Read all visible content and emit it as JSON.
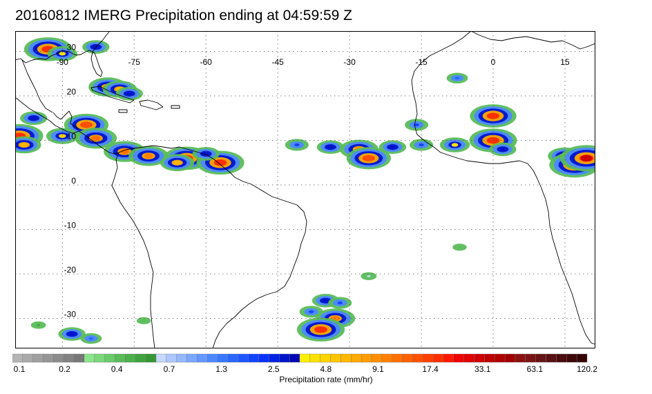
{
  "title": "20160812 IMERG Precipitation ending at 04:59:59 Z",
  "map": {
    "lon_ticks": [
      {
        "lon": -90,
        "label": "-90"
      },
      {
        "lon": -75,
        "label": "-75"
      },
      {
        "lon": -60,
        "label": "-60"
      },
      {
        "lon": -45,
        "label": "-45"
      },
      {
        "lon": -30,
        "label": "-30"
      },
      {
        "lon": -15,
        "label": "-15"
      },
      {
        "lon": 0,
        "label": "0"
      },
      {
        "lon": 15,
        "label": "15"
      }
    ],
    "lat_ticks": [
      {
        "lat": 30,
        "label": "30"
      },
      {
        "lat": 20,
        "label": "20"
      },
      {
        "lat": 10,
        "label": "10"
      },
      {
        "lat": 0,
        "label": "0"
      },
      {
        "lat": -10,
        "label": "-10"
      },
      {
        "lat": -20,
        "label": "-20"
      },
      {
        "lat": -30,
        "label": "-30"
      }
    ],
    "grid": "dotted",
    "colors": {
      "coast": "#000000",
      "grid": "#555555",
      "border": "#000000"
    }
  },
  "colorbar": {
    "label": "Precipitation rate (mm/hr)",
    "tick_labels": [
      {
        "index": 0,
        "label": "0.1"
      },
      {
        "index": 7,
        "label": "0.2"
      },
      {
        "index": 14,
        "label": "0.4"
      },
      {
        "index": 21,
        "label": "0.7"
      },
      {
        "index": 28,
        "label": "1.3"
      },
      {
        "index": 35,
        "label": "2.5"
      },
      {
        "index": 42,
        "label": "4.8"
      },
      {
        "index": 49,
        "label": "9.1"
      },
      {
        "index": 56,
        "label": "17.4"
      },
      {
        "index": 63,
        "label": "33.1"
      },
      {
        "index": 70,
        "label": "63.1"
      },
      {
        "index": 77,
        "label": "120.2"
      }
    ],
    "colors": [
      "#b4b4b4",
      "#aaaaaa",
      "#a0a0a0",
      "#969696",
      "#8c8c8c",
      "#828282",
      "#787878",
      "#8ae68a",
      "#7ad87a",
      "#6acb6a",
      "#5abd5a",
      "#4cb04c",
      "#3fa33f",
      "#349734",
      "#c6d8ff",
      "#acc8ff",
      "#93b8ff",
      "#7ba8ff",
      "#6498ff",
      "#4d88ff",
      "#3878ff",
      "#2a66ff",
      "#1d55ff",
      "#1244ff",
      "#0833ff",
      "#0022e6",
      "#0014cc",
      "#0008b3",
      "#fff000",
      "#ffe200",
      "#ffd400",
      "#ffc600",
      "#ffb800",
      "#ffaa00",
      "#ff9c00",
      "#ff8e00",
      "#ff8000",
      "#ff7000",
      "#ff6000",
      "#ff5000",
      "#ff4000",
      "#ff3000",
      "#ff1800",
      "#f00000",
      "#e00000",
      "#d00000",
      "#c00000",
      "#b00000",
      "#a00000",
      "#8c1010",
      "#7a1414",
      "#681414",
      "#581010",
      "#4a0c0c",
      "#3e0808",
      "#340404"
    ]
  },
  "precip_cells": [
    {
      "lon": -93,
      "lat": 30.5,
      "rate": 20
    },
    {
      "lon": -90,
      "lat": 29.5,
      "rate": 4
    },
    {
      "lon": -83,
      "lat": 31,
      "rate": 3
    },
    {
      "lon": -80.5,
      "lat": 22,
      "rate": 9
    },
    {
      "lon": -78,
      "lat": 21.5,
      "rate": 6
    },
    {
      "lon": -76,
      "lat": 20.5,
      "rate": 3
    },
    {
      "lon": -85,
      "lat": 13.5,
      "rate": 15
    },
    {
      "lon": -96,
      "lat": 15,
      "rate": 3
    },
    {
      "lon": -99,
      "lat": 11,
      "rate": 20
    },
    {
      "lon": -98,
      "lat": 9,
      "rate": 6
    },
    {
      "lon": -90,
      "lat": 11,
      "rate": 5
    },
    {
      "lon": -83,
      "lat": 10.5,
      "rate": 12
    },
    {
      "lon": -77,
      "lat": 7.5,
      "rate": 12
    },
    {
      "lon": -72,
      "lat": 6.5,
      "rate": 10
    },
    {
      "lon": -64,
      "lat": 6,
      "rate": 18
    },
    {
      "lon": -66,
      "lat": 5,
      "rate": 6
    },
    {
      "lon": -57,
      "lat": 5,
      "rate": 20
    },
    {
      "lon": -60,
      "lat": 7,
      "rate": 3
    },
    {
      "lon": -41,
      "lat": 9,
      "rate": 2
    },
    {
      "lon": -34,
      "lat": 8.5,
      "rate": 3
    },
    {
      "lon": -28,
      "lat": 8,
      "rate": 9
    },
    {
      "lon": -26,
      "lat": 6,
      "rate": 15
    },
    {
      "lon": -21,
      "lat": 8.5,
      "rate": 3
    },
    {
      "lon": -15,
      "lat": 9,
      "rate": 2
    },
    {
      "lon": -8,
      "lat": 9,
      "rate": 4
    },
    {
      "lon": 0,
      "lat": 15.5,
      "rate": 18
    },
    {
      "lon": 0,
      "lat": 10,
      "rate": 20
    },
    {
      "lon": 2,
      "lat": 8,
      "rate": 3
    },
    {
      "lon": 15,
      "lat": 6.5,
      "rate": 6
    },
    {
      "lon": 17,
      "lat": 4.5,
      "rate": 25
    },
    {
      "lon": 19.5,
      "lat": 6,
      "rate": 30
    },
    {
      "lon": -7.5,
      "lat": 24,
      "rate": 1.5
    },
    {
      "lon": -16,
      "lat": 13.5,
      "rate": 2
    },
    {
      "lon": -38,
      "lat": -28.5,
      "rate": 2
    },
    {
      "lon": -33,
      "lat": -30,
      "rate": 10
    },
    {
      "lon": -36,
      "lat": -32.5,
      "rate": 20
    },
    {
      "lon": -35,
      "lat": -26,
      "rate": 3
    },
    {
      "lon": -32,
      "lat": -26.5,
      "rate": 2
    },
    {
      "lon": -26,
      "lat": -20.5,
      "rate": 0.6
    },
    {
      "lon": -7,
      "lat": -14,
      "rate": 0.4
    },
    {
      "lon": -88,
      "lat": -33.5,
      "rate": 3
    },
    {
      "lon": -84,
      "lat": -34.5,
      "rate": 1.5
    },
    {
      "lon": -95,
      "lat": -31.5,
      "rate": 0.5
    },
    {
      "lon": -73,
      "lat": -30.5,
      "rate": 0.4
    }
  ]
}
